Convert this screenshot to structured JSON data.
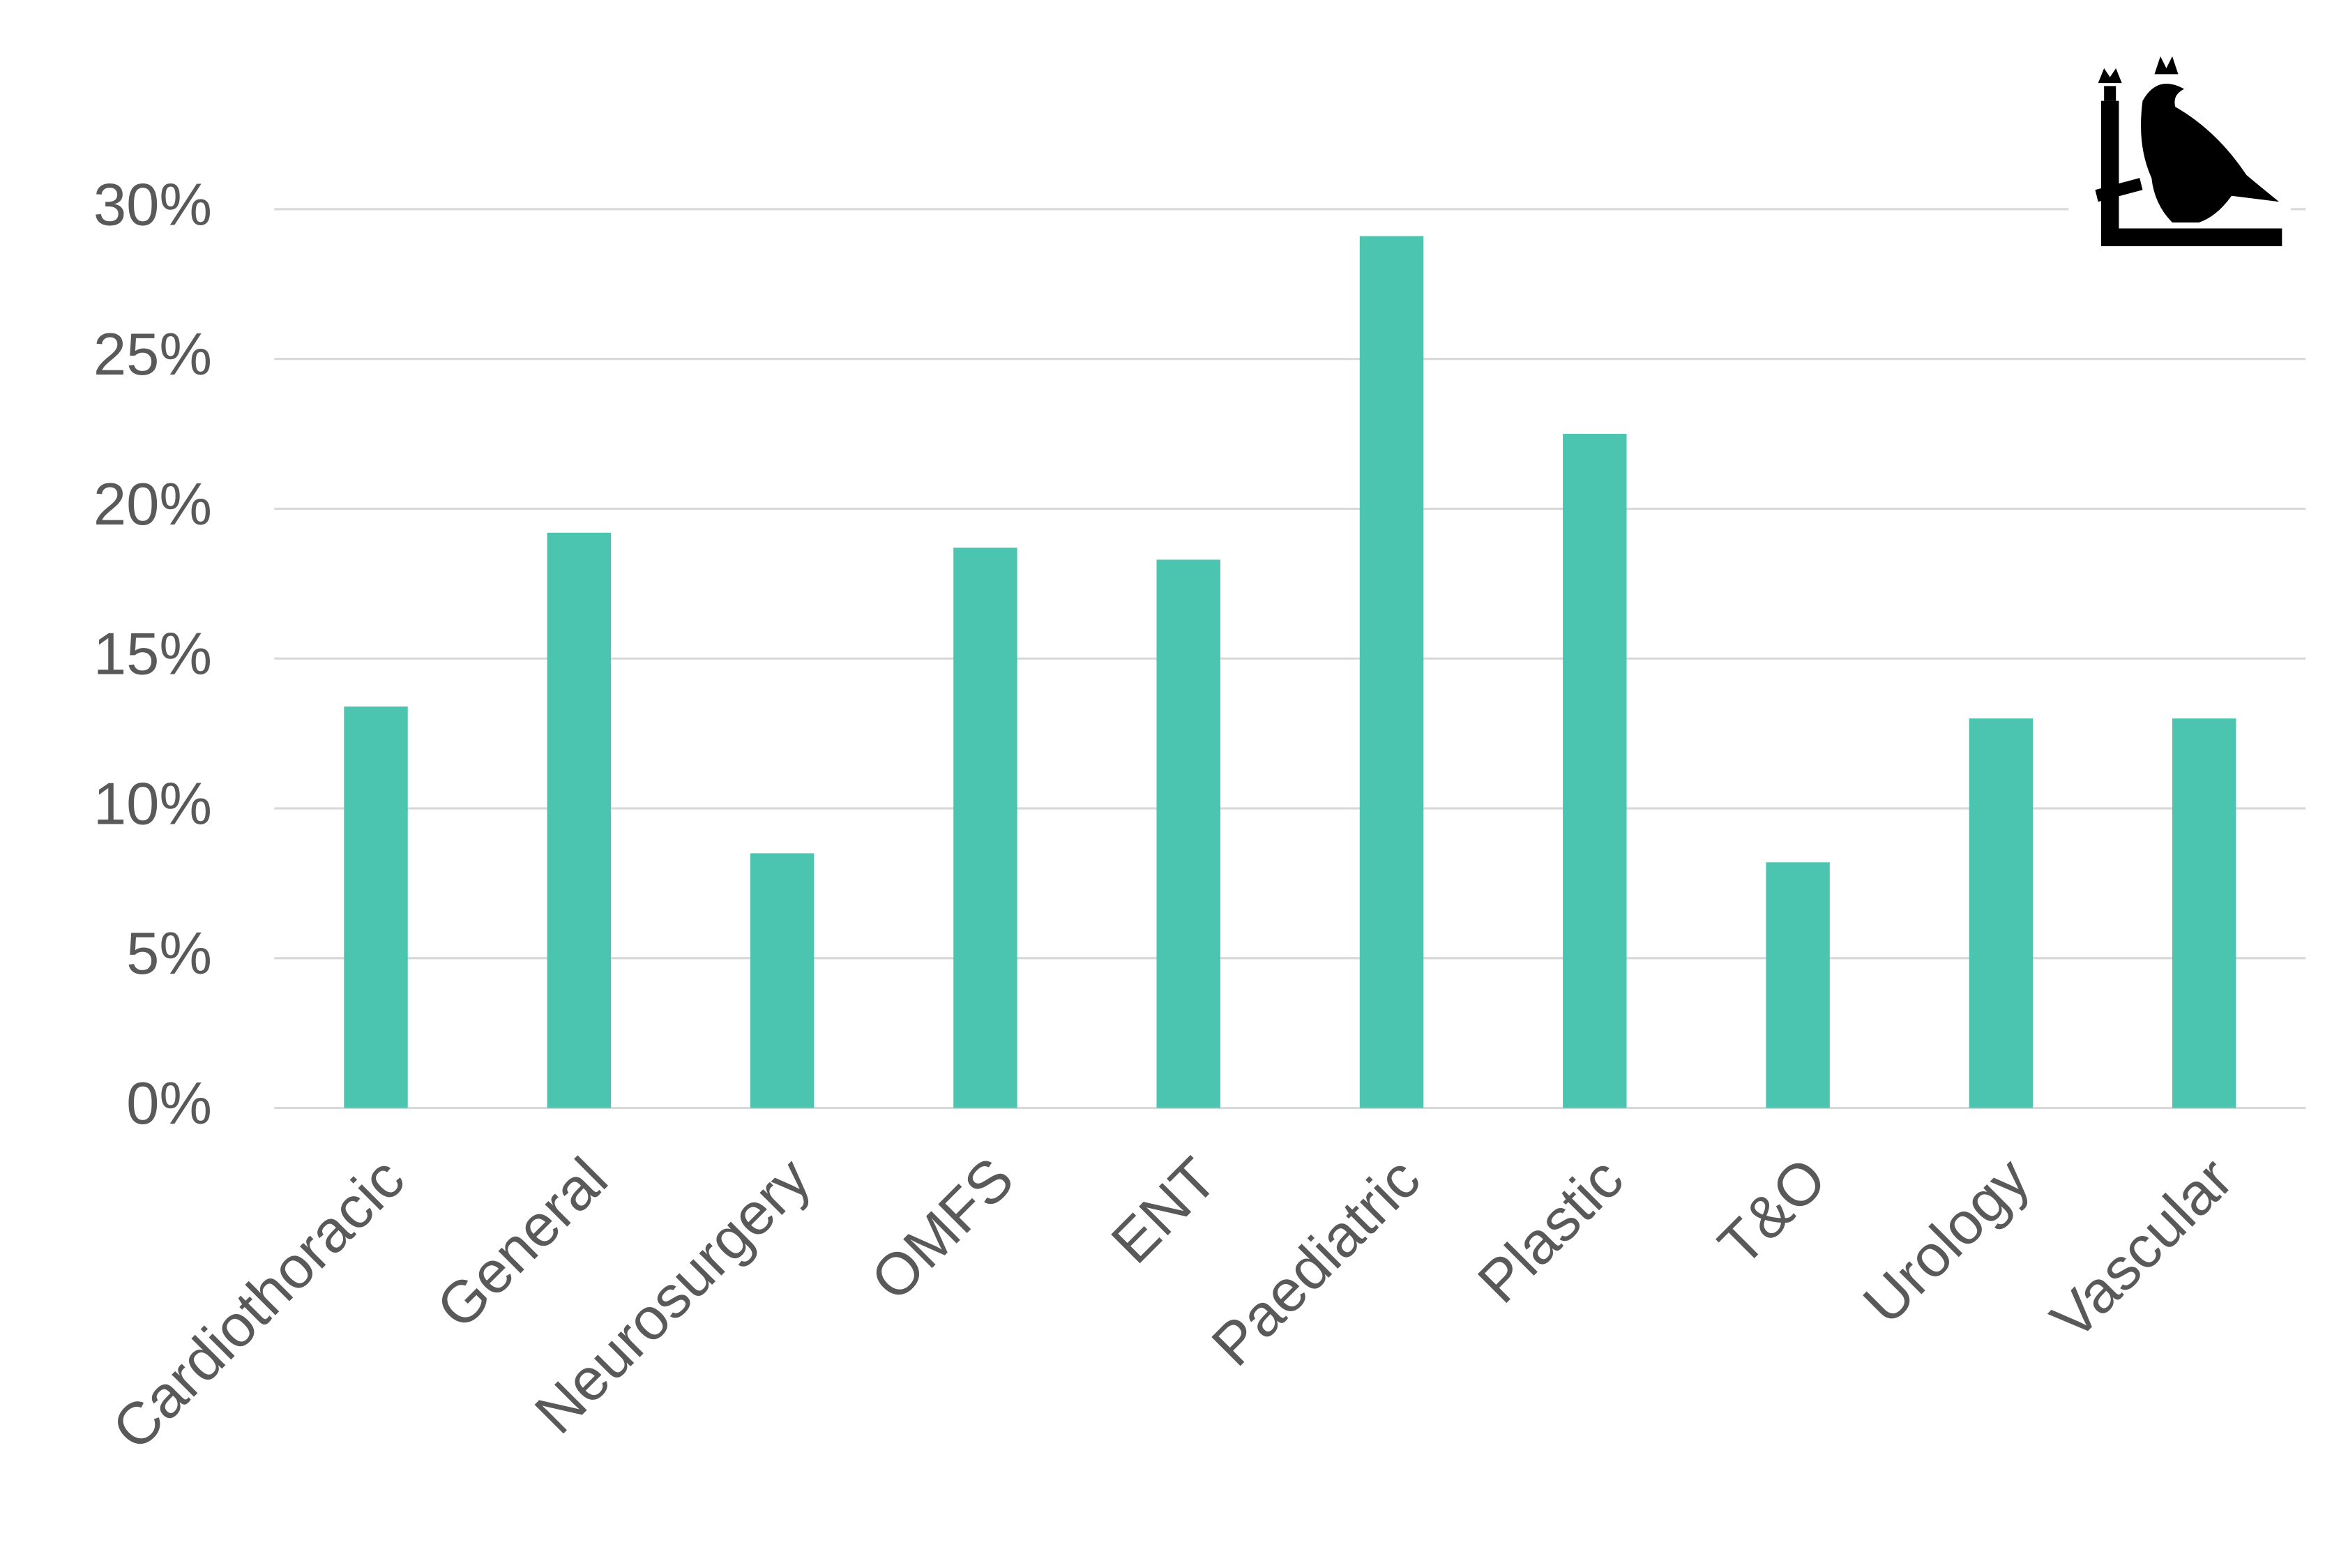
{
  "chart_data": {
    "type": "bar",
    "categories": [
      "Cardiothoracic",
      "General",
      "Neurosurgery",
      "OMFS",
      "ENT",
      "Paediatric",
      "Plastic",
      "T&O",
      "Urology",
      "Vascular"
    ],
    "values": [
      13.4,
      19.2,
      8.5,
      18.7,
      18.3,
      29.1,
      22.5,
      8.2,
      13.0,
      13.0
    ],
    "color": "#4bc4b0",
    "ylim": [
      0,
      30
    ],
    "yticks": [
      {
        "value": 0,
        "label": "0%"
      },
      {
        "value": 5,
        "label": "5%"
      },
      {
        "value": 10,
        "label": "10%"
      },
      {
        "value": 15,
        "label": "15%"
      },
      {
        "value": 20,
        "label": "20%"
      },
      {
        "value": 25,
        "label": "25%"
      },
      {
        "value": 30,
        "label": "30%"
      }
    ],
    "grid": true
  }
}
